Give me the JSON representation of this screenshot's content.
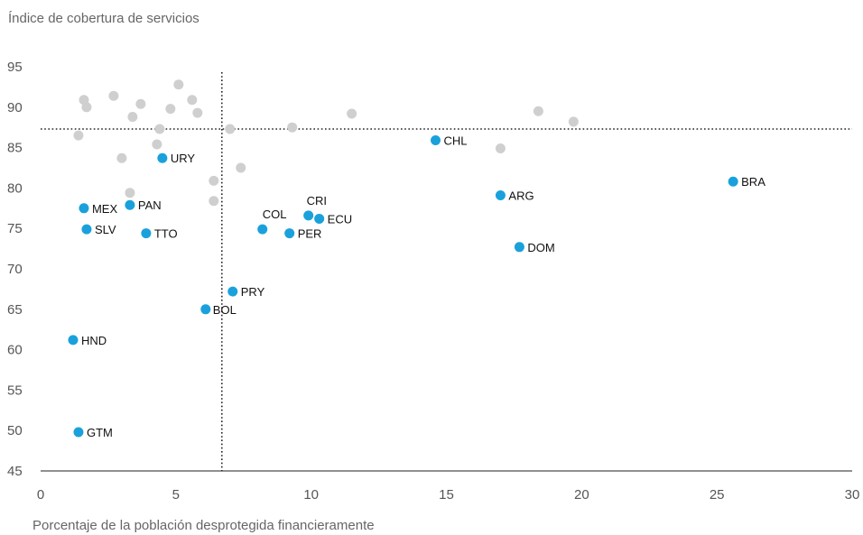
{
  "chart_data": {
    "type": "scatter",
    "ylabel": "Índice de cobertura de servicios",
    "xlabel": "Porcentaje de la población desprotegida financieramente",
    "xlim": [
      0,
      30
    ],
    "ylim": [
      45,
      95
    ],
    "x_ticks": [
      0,
      5,
      10,
      15,
      20,
      25,
      30
    ],
    "y_ticks": [
      45,
      50,
      55,
      60,
      65,
      70,
      75,
      80,
      85,
      90,
      95
    ],
    "reference_lines": {
      "x": 6.7,
      "y": 87.3
    },
    "grid": false,
    "colors": {
      "highlighted": "#1aa1dc",
      "other": "#cfcfcf",
      "axis": "#222222"
    },
    "highlighted": [
      {
        "label": "CHL",
        "x": 14.6,
        "y": 85.9
      },
      {
        "label": "URY",
        "x": 4.5,
        "y": 83.7
      },
      {
        "label": "BRA",
        "x": 25.6,
        "y": 80.8
      },
      {
        "label": "ARG",
        "x": 17.0,
        "y": 79.1
      },
      {
        "label": "MEX",
        "x": 1.6,
        "y": 77.5
      },
      {
        "label": "PAN",
        "x": 3.3,
        "y": 77.9
      },
      {
        "label": "CRI",
        "x": 9.9,
        "y": 76.6
      },
      {
        "label": "ECU",
        "x": 10.3,
        "y": 76.2
      },
      {
        "label": "SLV",
        "x": 1.7,
        "y": 74.9
      },
      {
        "label": "COL",
        "x": 8.2,
        "y": 74.9
      },
      {
        "label": "TTO",
        "x": 3.9,
        "y": 74.4
      },
      {
        "label": "PER",
        "x": 9.2,
        "y": 74.4
      },
      {
        "label": "DOM",
        "x": 17.7,
        "y": 72.7
      },
      {
        "label": "PRY",
        "x": 7.1,
        "y": 67.2
      },
      {
        "label": "BOL",
        "x": 6.1,
        "y": 65.0
      },
      {
        "label": "HND",
        "x": 1.2,
        "y": 61.2
      },
      {
        "label": "GTM",
        "x": 1.4,
        "y": 49.8
      }
    ],
    "others": [
      {
        "x": 1.6,
        "y": 90.9
      },
      {
        "x": 1.7,
        "y": 90.0
      },
      {
        "x": 1.4,
        "y": 86.5
      },
      {
        "x": 2.7,
        "y": 91.4
      },
      {
        "x": 3.0,
        "y": 83.7
      },
      {
        "x": 3.4,
        "y": 88.8
      },
      {
        "x": 3.7,
        "y": 90.4
      },
      {
        "x": 4.4,
        "y": 87.3
      },
      {
        "x": 4.3,
        "y": 85.4
      },
      {
        "x": 4.8,
        "y": 89.8
      },
      {
        "x": 5.1,
        "y": 92.8
      },
      {
        "x": 5.6,
        "y": 90.9
      },
      {
        "x": 5.8,
        "y": 89.3
      },
      {
        "x": 6.4,
        "y": 80.9
      },
      {
        "x": 6.4,
        "y": 78.4
      },
      {
        "x": 7.0,
        "y": 87.3
      },
      {
        "x": 7.4,
        "y": 82.5
      },
      {
        "x": 9.3,
        "y": 87.5
      },
      {
        "x": 11.5,
        "y": 89.2
      },
      {
        "x": 3.3,
        "y": 79.4
      },
      {
        "x": 17.0,
        "y": 84.9
      },
      {
        "x": 18.4,
        "y": 89.5
      },
      {
        "x": 19.7,
        "y": 88.2
      }
    ]
  }
}
